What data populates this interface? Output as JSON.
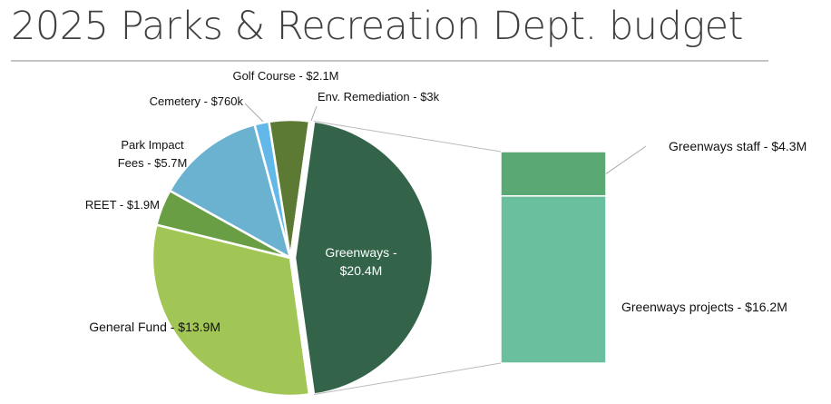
{
  "chart_data": {
    "type": "pie",
    "title": "2025 Parks & Recreation Dept. budget",
    "labels": [
      "Greenways -\n$20.4M",
      "General Fund - $13.9M",
      "REET - $1.9M",
      "Park Impact\nFees - $5.7M",
      "Cemetery - $760k",
      "Golf Course - $2.1M",
      "Env. Remediation - $3k"
    ],
    "values": [
      20400000,
      13900000,
      1900000,
      5700000,
      760000,
      2100000,
      3000
    ],
    "colors": [
      "#33644a",
      "#a2c655",
      "#6a9e45",
      "#6ab2d0",
      "#62b8e8",
      "#5c7a33",
      "#4a5f30"
    ],
    "breakdown": {
      "labels": [
        "Greenways staff - $4.3M",
        "Greenways projects - $16.2M"
      ],
      "values": [
        4300000,
        16200000
      ],
      "colors": [
        "#5aa874",
        "#6abf9f"
      ]
    }
  }
}
